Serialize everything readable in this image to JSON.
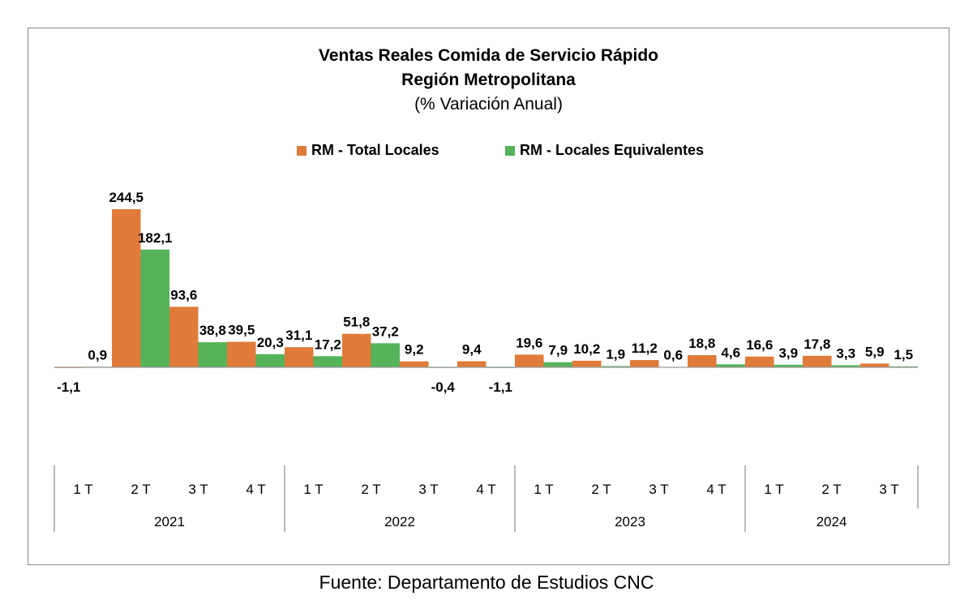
{
  "chart_data": {
    "type": "bar",
    "title": "Ventas Reales Comida de Servicio Rápido",
    "subtitle": "Región Metropolitana",
    "unit_note": "(% Variación Anual)",
    "source": "Fuente: Departamento de Estudios CNC",
    "legend_position": "top",
    "grid": false,
    "categories": [
      "1 T",
      "2 T",
      "3 T",
      "4 T",
      "1 T",
      "2 T",
      "3 T",
      "4 T",
      "1 T",
      "2 T",
      "3 T",
      "4 T",
      "1 T",
      "2 T",
      "3 T"
    ],
    "category_groups": [
      {
        "label": "2021",
        "count": 4
      },
      {
        "label": "2022",
        "count": 4
      },
      {
        "label": "2023",
        "count": 4
      },
      {
        "label": "2024",
        "count": 3
      }
    ],
    "series": [
      {
        "name": "RM - Total Locales",
        "color": "#E07B39",
        "values": [
          -1.1,
          244.5,
          93.6,
          39.5,
          31.1,
          51.8,
          9.2,
          9.4,
          19.6,
          10.2,
          11.2,
          18.8,
          16.6,
          17.8,
          5.9
        ],
        "labels": [
          "-1,1",
          "244,5",
          "93,6",
          "39,5",
          "31,1",
          "51,8",
          "9,2",
          "9,4",
          "19,6",
          "10,2",
          "11,2",
          "18,8",
          "16,6",
          "17,8",
          "5,9"
        ]
      },
      {
        "name": "RM - Locales Equivalentes",
        "color": "#55B35A",
        "values": [
          0.9,
          182.1,
          38.8,
          20.3,
          17.2,
          37.2,
          -0.4,
          -1.1,
          7.9,
          1.9,
          0.6,
          4.6,
          3.9,
          3.3,
          1.5
        ],
        "labels": [
          "0,9",
          "182,1",
          "38,8",
          "20,3",
          "17,2",
          "37,2",
          "-0,4",
          "-1,1",
          "7,9",
          "1,9",
          "0,6",
          "4,6",
          "3,9",
          "3,3",
          "1,5"
        ]
      }
    ]
  }
}
